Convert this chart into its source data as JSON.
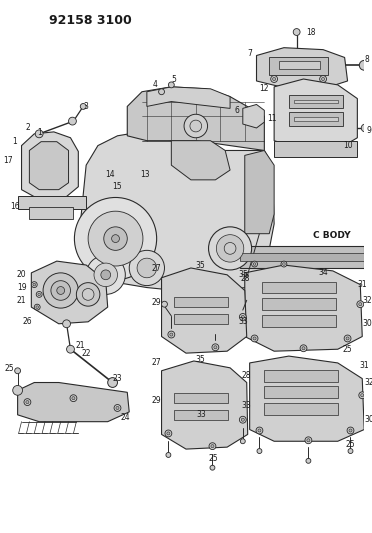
{
  "title": "92158 3100",
  "background_color": "#ffffff",
  "figsize": [
    3.72,
    5.33
  ],
  "dpi": 100,
  "line_color": "#2a2a2a",
  "label_color": "#1a1a1a",
  "fill_light": "#e0e0e0",
  "fill_mid": "#cccccc",
  "fill_dark": "#b0b0b0",
  "label_fontsize": 5.5,
  "title_fontsize": 9
}
